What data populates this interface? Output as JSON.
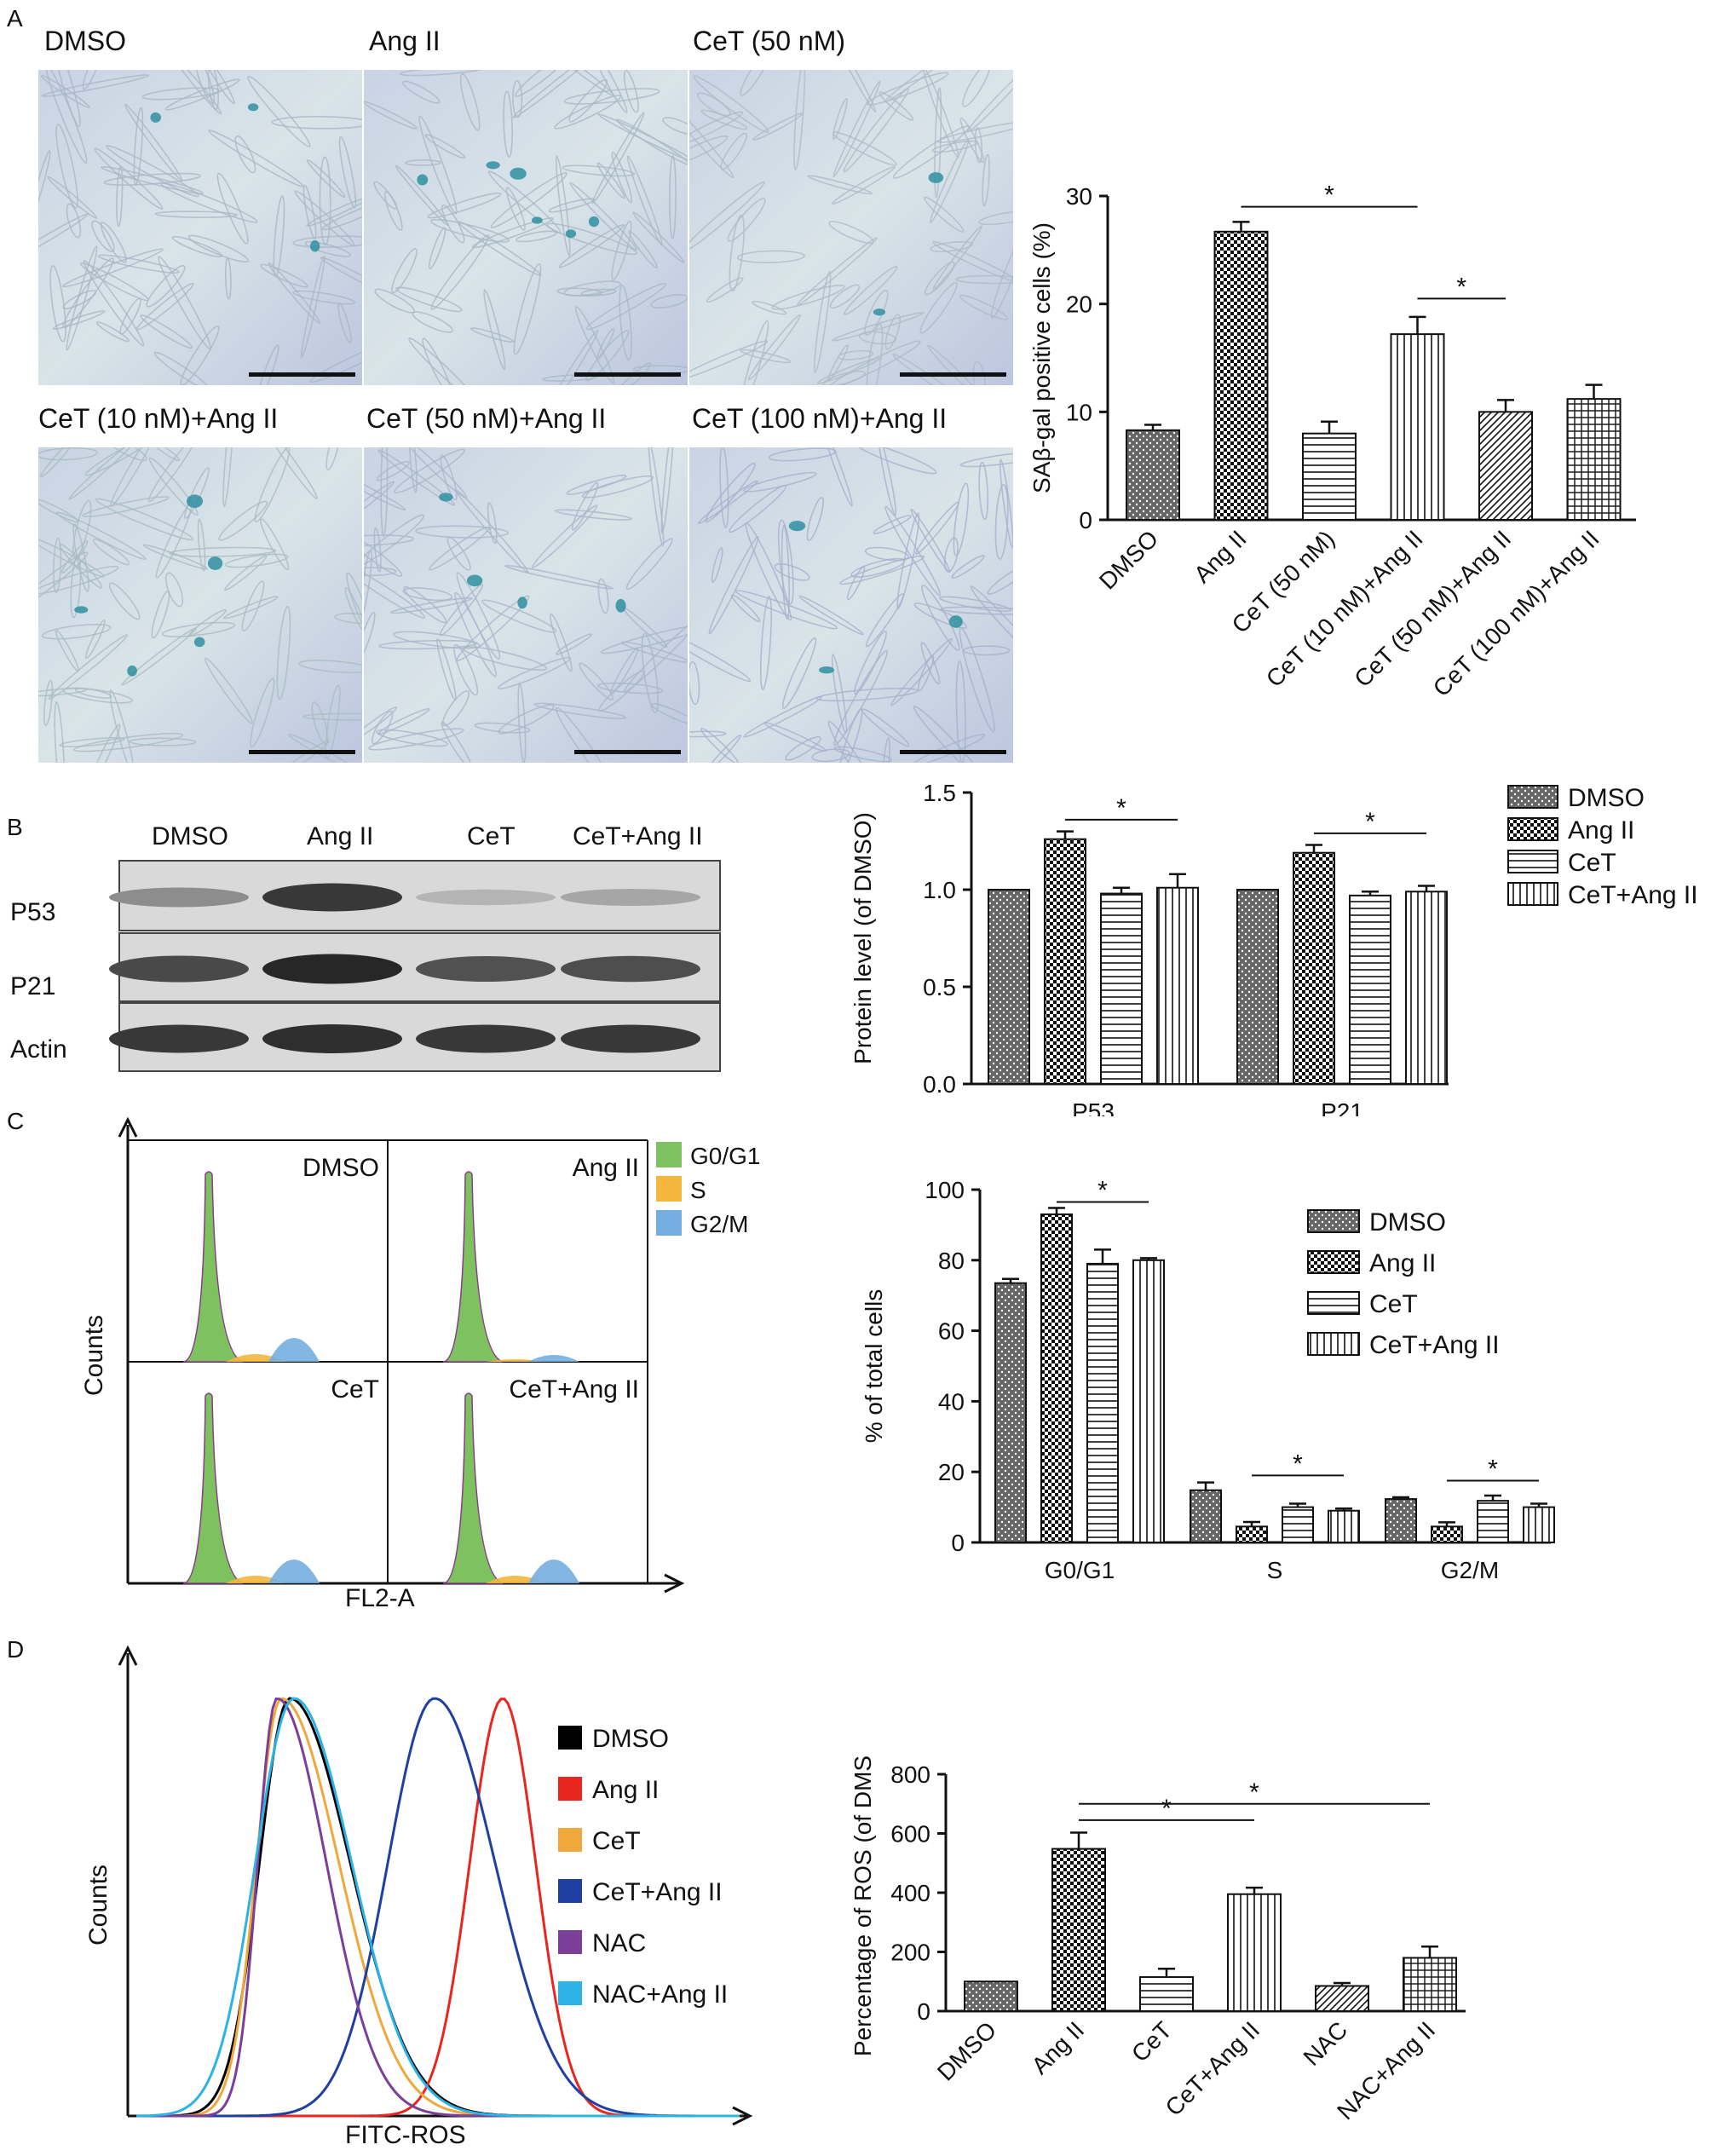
{
  "panels": {
    "a": "A",
    "b": "B",
    "c": "C",
    "d": "D"
  },
  "micrographs": [
    {
      "label": "DMSO",
      "cell_hue": "#a9b8c6"
    },
    {
      "label": "Ang II",
      "cell_hue": "#a7b9c4"
    },
    {
      "label": "CeT (50 nM)",
      "cell_hue": "#acbbc7"
    },
    {
      "label": "CeT (10 nM)+Ang II",
      "cell_hue": "#a9bdc2"
    },
    {
      "label": "CeT (50 nM)+Ang II",
      "cell_hue": "#a8b7c9"
    },
    {
      "label": "CeT (100 nM)+Ang II",
      "cell_hue": "#a6b2cc"
    }
  ],
  "western_blot": {
    "lanes": [
      "DMSO",
      "Ang II",
      "CeT",
      "CeT+Ang II"
    ],
    "rows": [
      "P53",
      "P21",
      "Actin"
    ],
    "band_intensity": [
      [
        0.35,
        0.85,
        0.12,
        0.2
      ],
      [
        0.75,
        0.95,
        0.7,
        0.72
      ],
      [
        0.85,
        0.9,
        0.85,
        0.85
      ]
    ]
  },
  "flow_c": {
    "quadrants": [
      "DMSO",
      "Ang II",
      "CeT",
      "CeT+Ang II"
    ],
    "legend": [
      {
        "label": "G0/G1",
        "color": "#7dc25e"
      },
      {
        "label": "S",
        "color": "#f2b73c"
      },
      {
        "label": "G2/M",
        "color": "#74aee0"
      }
    ],
    "ylabel": "Counts",
    "xlabel": "FL2-A"
  },
  "flow_d": {
    "legend": [
      {
        "label": "DMSO",
        "color": "#000000"
      },
      {
        "label": "Ang II",
        "color": "#e8261f"
      },
      {
        "label": "CeT",
        "color": "#f0a83c"
      },
      {
        "label": "CeT+Ang II",
        "color": "#1f3fa3"
      },
      {
        "label": "NAC",
        "color": "#7b3f9a"
      },
      {
        "label": "NAC+Ang II",
        "color": "#2bb3e6"
      }
    ],
    "ylabel": "Counts",
    "xlabel": "FITC-ROS"
  },
  "chart_data": [
    {
      "type": "bar",
      "categories": [
        "DMSO",
        "Ang II",
        "CeT (50 nM)",
        "CeT (10 nM)+Ang II",
        "CeT (50 nM)+Ang II",
        "CeT (100 nM)+Ang II"
      ],
      "values": [
        8.3,
        26.7,
        8.0,
        17.2,
        10.0,
        11.2
      ],
      "errors": [
        0.5,
        0.9,
        1.1,
        1.6,
        1.1,
        1.3
      ],
      "patterns": [
        "dots",
        "check",
        "hlines",
        "vlines",
        "diag",
        "grid"
      ],
      "ylabel": "SAβ-gal positive cells (%)",
      "ylim": [
        0,
        30
      ],
      "yticks": [
        0,
        10,
        20,
        30
      ],
      "significance": [
        {
          "from": 1,
          "to": 3,
          "label": "*"
        },
        {
          "from": 3,
          "to": 4,
          "label": "*"
        }
      ]
    },
    {
      "type": "bar",
      "groups": [
        "P53",
        "P21"
      ],
      "series": [
        {
          "name": "DMSO",
          "values": [
            1.0,
            1.0
          ],
          "errors": [
            0,
            0
          ],
          "pattern": "dots"
        },
        {
          "name": "Ang II",
          "values": [
            1.26,
            1.19
          ],
          "errors": [
            0.04,
            0.04
          ],
          "pattern": "check"
        },
        {
          "name": "CeT",
          "values": [
            0.98,
            0.97
          ],
          "errors": [
            0.03,
            0.02
          ],
          "pattern": "hlines"
        },
        {
          "name": "CeT+Ang II",
          "values": [
            1.01,
            0.99
          ],
          "errors": [
            0.07,
            0.03
          ],
          "pattern": "vlines"
        }
      ],
      "ylabel": "Protein level (of DMSO)",
      "ylim": [
        0,
        1.5
      ],
      "yticks": [
        "0.0",
        "0.5",
        "1.0",
        "1.5"
      ],
      "legend_position": "right",
      "significance": [
        {
          "group": 0,
          "label": "*"
        },
        {
          "group": 1,
          "label": "*"
        }
      ]
    },
    {
      "type": "bar",
      "groups": [
        "G0/G1",
        "S",
        "G2/M"
      ],
      "series": [
        {
          "name": "DMSO",
          "values": [
            73.5,
            14.8,
            12.3
          ],
          "errors": [
            1.2,
            2.2,
            0.5
          ],
          "pattern": "dots"
        },
        {
          "name": "Ang II",
          "values": [
            93.0,
            4.5,
            4.5
          ],
          "errors": [
            1.8,
            1.3,
            1.2
          ],
          "pattern": "check"
        },
        {
          "name": "CeT",
          "values": [
            79.0,
            10.0,
            11.8
          ],
          "errors": [
            4.0,
            1.0,
            1.5
          ],
          "pattern": "hlines"
        },
        {
          "name": "CeT+Ang II",
          "values": [
            80.0,
            9.0,
            10.0
          ],
          "errors": [
            0.6,
            0.6,
            1.0
          ],
          "pattern": "vlines"
        }
      ],
      "ylabel": "% of total cells",
      "ylim": [
        0,
        100
      ],
      "yticks": [
        0,
        20,
        40,
        60,
        80,
        100
      ],
      "legend_position": "top-right",
      "significance": [
        {
          "group": 0,
          "label": "*"
        },
        {
          "group": 1,
          "label": "*"
        },
        {
          "group": 2,
          "label": "*"
        }
      ]
    },
    {
      "type": "bar",
      "categories": [
        "DMSO",
        "Ang II",
        "CeT",
        "CeT+Ang II",
        "NAC",
        "NAC+Ang II"
      ],
      "values": [
        100,
        548,
        115,
        395,
        85,
        180
      ],
      "errors": [
        0,
        55,
        28,
        22,
        10,
        38
      ],
      "patterns": [
        "dots",
        "check",
        "hlines",
        "vlines",
        "diag",
        "grid"
      ],
      "ylabel": "Percentage of ROS (of DMSO)",
      "ylim": [
        0,
        800
      ],
      "yticks": [
        0,
        200,
        400,
        600,
        800
      ],
      "significance": [
        {
          "from": 1,
          "to": 3,
          "label": "*"
        },
        {
          "from": 1,
          "to": 5,
          "label": "*"
        }
      ]
    }
  ]
}
